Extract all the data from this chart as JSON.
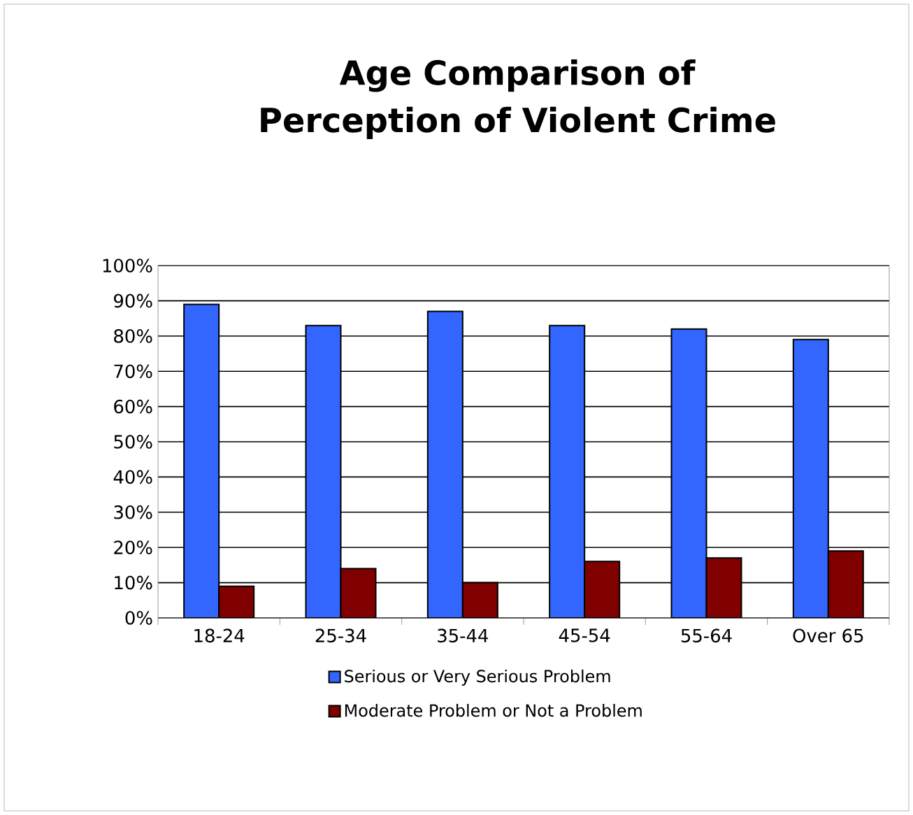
{
  "chart_data": {
    "type": "bar",
    "title": "Age Comparison of Perception of Violent Crime",
    "categories": [
      "18-24",
      "25-34",
      "35-44",
      "45-54",
      "55-64",
      "Over 65"
    ],
    "series": [
      {
        "name": "Serious or Very Serious Problem",
        "color": "#3366ff",
        "values": [
          89,
          83,
          87,
          83,
          82,
          79
        ]
      },
      {
        "name": "Moderate Problem or Not a Problem",
        "color": "#800000",
        "values": [
          9,
          14,
          10,
          16,
          17,
          19
        ]
      }
    ],
    "ylim": [
      0,
      100
    ],
    "yticks": [
      {
        "value": 0,
        "label": "0%"
      },
      {
        "value": 10,
        "label": "10%"
      },
      {
        "value": 20,
        "label": "20%"
      },
      {
        "value": 30,
        "label": "30%"
      },
      {
        "value": 40,
        "label": "40%"
      },
      {
        "value": 50,
        "label": "50%"
      },
      {
        "value": 60,
        "label": "60%"
      },
      {
        "value": 70,
        "label": "70%"
      },
      {
        "value": 80,
        "label": "80%"
      },
      {
        "value": 90,
        "label": "90%"
      },
      {
        "value": 100,
        "label": "100%"
      }
    ],
    "grid": "y",
    "legend": "bottom"
  }
}
